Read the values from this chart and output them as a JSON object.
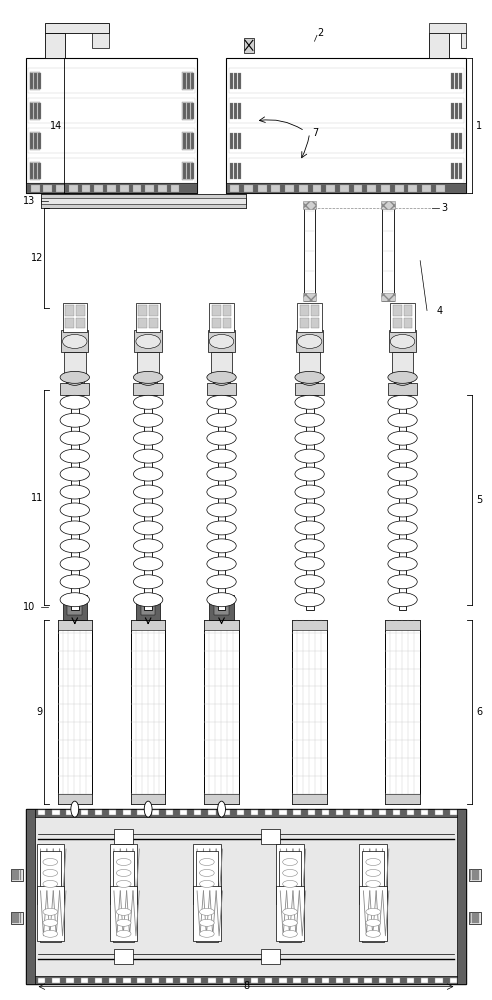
{
  "figure_width": 4.92,
  "figure_height": 10.0,
  "dpi": 100,
  "bg_color": "#ffffff",
  "line_color": "#000000",
  "light_gray": "#cccccc",
  "dark_gray": "#555555",
  "mid_gray": "#888888",
  "light_fill": "#e8e8e8",
  "medium_fill": "#d0d0d0",
  "dark_fill": "#606060",
  "green_accent": "#90c090",
  "pink_accent": "#d0a0a0"
}
